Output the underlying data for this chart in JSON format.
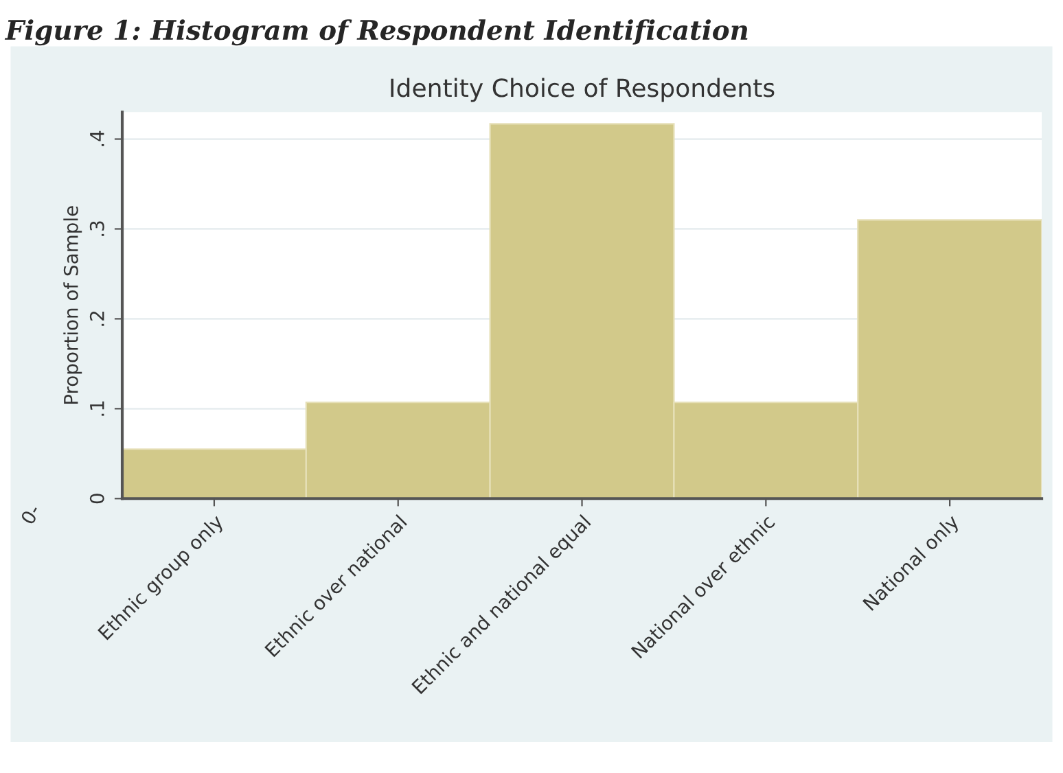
{
  "chart_data": {
    "type": "bar",
    "title": "Figure 1: Histogram of Respondent Identification",
    "subtitle": "Identity Choice of Respondents",
    "ylabel": "Proportion of Sample",
    "categories": [
      "Ethnic group only",
      "Ethnic over national",
      "Ethnic and national equal",
      "National over ethnic",
      "National only"
    ],
    "values": [
      0.055,
      0.107,
      0.417,
      0.107,
      0.31
    ],
    "color": "#d2c98a",
    "ylim": [
      0,
      0.43
    ],
    "yticks": [
      {
        "value": 0,
        "label": "0"
      },
      {
        "value": 0.1,
        "label": ".1"
      },
      {
        "value": 0.2,
        "label": ".2"
      },
      {
        "value": 0.3,
        "label": ".3"
      },
      {
        "value": 0.4,
        "label": ".4"
      }
    ],
    "grid": "y",
    "annotations": [
      "0-"
    ]
  }
}
